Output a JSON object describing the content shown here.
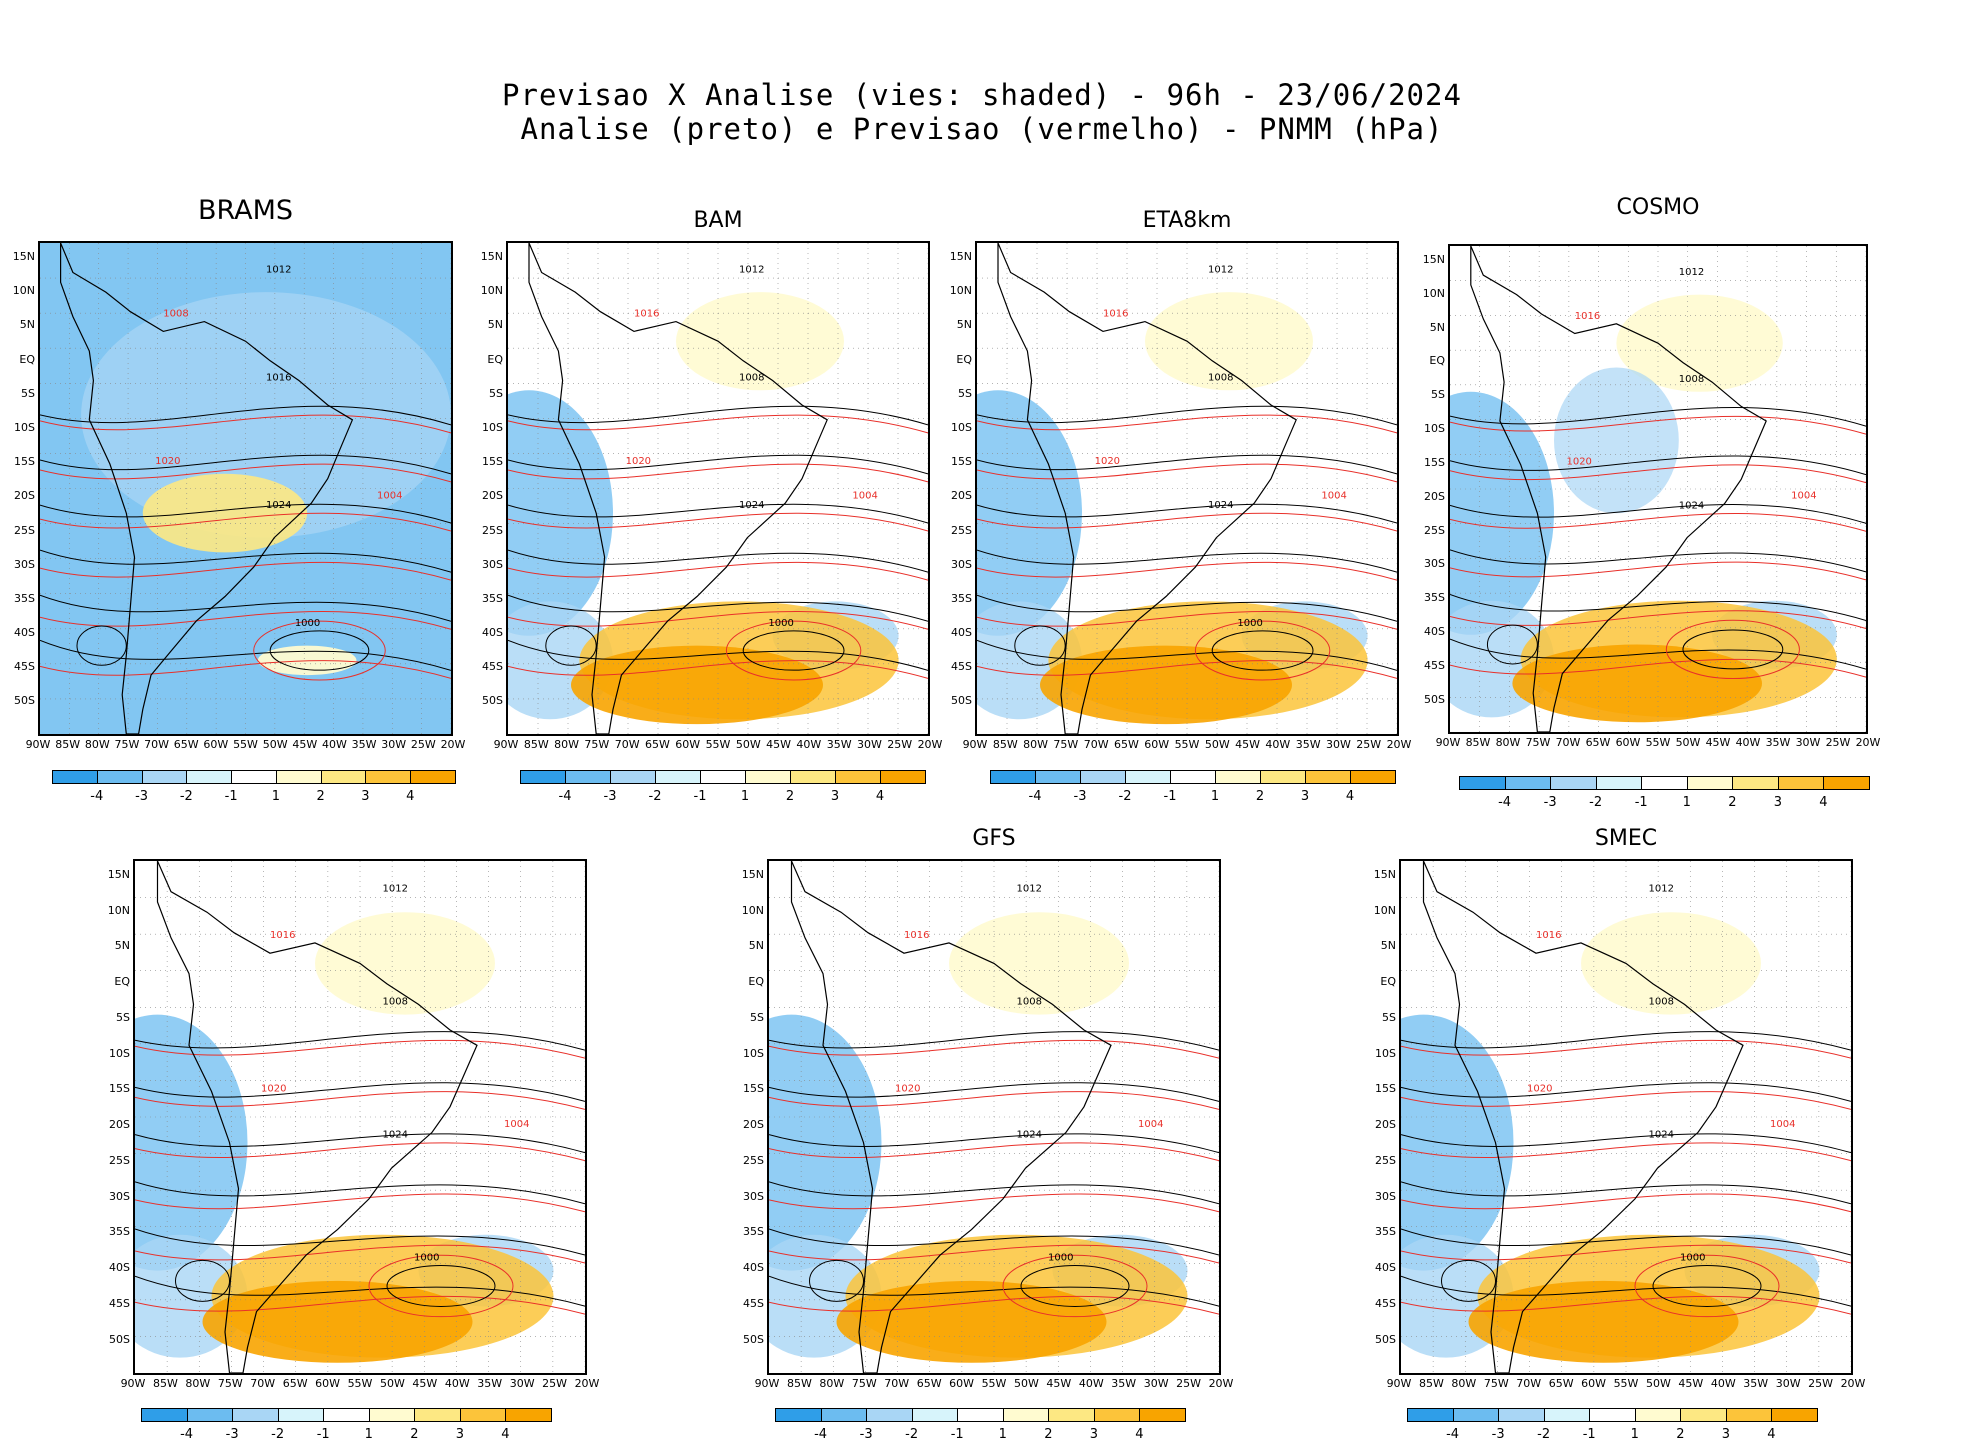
{
  "header": {
    "line1": "Previsao X Analise (vies: shaded) - 96h - 23/06/2024",
    "line2": "Analise (preto) e Previsao (vermelho) - PNMM (hPa)"
  },
  "colors": {
    "neg4": "#2f9ee8",
    "neg3": "#6cbcf0",
    "neg2": "#a9d6f5",
    "neg1": "#d7f4fb",
    "zero": "#ffffff",
    "pos1": "#fffbd0",
    "pos2": "#fde883",
    "pos3": "#fcc43a",
    "pos4": "#f8a400",
    "analysis": "#000000",
    "forecast": "#e8302a"
  },
  "lat_labels": [
    "15N",
    "10N",
    "5N",
    "EQ",
    "5S",
    "10S",
    "15S",
    "20S",
    "25S",
    "30S",
    "35S",
    "40S",
    "45S",
    "50S"
  ],
  "lon_labels": [
    "90W",
    "85W",
    "80W",
    "75W",
    "70W",
    "65W",
    "60W",
    "55W",
    "50W",
    "45W",
    "40W",
    "35W",
    "30W",
    "25W",
    "20W"
  ],
  "colorbar_labels": [
    "-4",
    "-3",
    "-2",
    "-1",
    "1",
    "2",
    "3",
    "4"
  ],
  "panels": [
    {
      "title": "BRAMS",
      "bias": "cold",
      "labels": [
        "1012",
        "1008",
        "1016",
        "1020",
        "1024",
        "1004",
        "1000"
      ]
    },
    {
      "title": "BAM",
      "bias": "warm-south",
      "labels": [
        "1012",
        "1016",
        "1008",
        "1020",
        "1024",
        "1004",
        "1000"
      ]
    },
    {
      "title": "ETA8km",
      "bias": "warm-south",
      "labels": [
        "1012",
        "1016",
        "1008",
        "1020",
        "1024",
        "1004",
        "1000"
      ]
    },
    {
      "title": "COSMO",
      "bias": "mixed",
      "labels": [
        "1012",
        "1016",
        "1008",
        "1020",
        "1024",
        "1004"
      ]
    },
    {
      "title": "",
      "bias": "warm-south",
      "labels": [
        "1012",
        "1016",
        "1008",
        "1020",
        "1024",
        "1004",
        "1000"
      ]
    },
    {
      "title": "GFS",
      "bias": "warm-south",
      "labels": [
        "1012",
        "1016",
        "1008",
        "1020",
        "1024",
        "1004",
        "1000"
      ]
    },
    {
      "title": "SMEC",
      "bias": "warm-south",
      "labels": [
        "1012",
        "1016",
        "1008",
        "1020",
        "1024",
        "1004",
        "1000"
      ]
    }
  ]
}
